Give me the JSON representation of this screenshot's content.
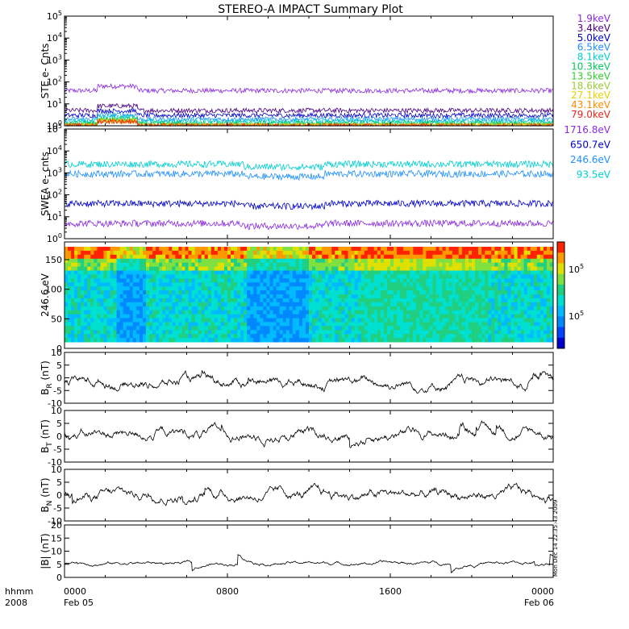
{
  "title": "STEREO-A IMPACT Summary Plot",
  "timestamp": "Mon Dec 14 22:35:43 2009",
  "colors": {
    "panel_border": "#000000",
    "trace": "#000000"
  },
  "chart_data": [
    {
      "id": "ste",
      "type": "line",
      "ylabel": "STE e- Cnts",
      "yscale": "log",
      "ylim": [
        1,
        100000
      ],
      "y_ticks": [
        {
          "base": "10",
          "exp": "0"
        },
        {
          "base": "10",
          "exp": "1"
        },
        {
          "base": "10",
          "exp": "2"
        },
        {
          "base": "10",
          "exp": "3"
        },
        {
          "base": "10",
          "exp": "4"
        },
        {
          "base": "10",
          "exp": "5"
        }
      ],
      "series": [
        {
          "name": "1.9keV",
          "color": "#8a2be2",
          "level": 40
        },
        {
          "name": "3.4keV",
          "color": "#4b0082",
          "level": 5
        },
        {
          "name": "5.0keV",
          "color": "#0000cd",
          "level": 3
        },
        {
          "name": "6.5keV",
          "color": "#1e90ff",
          "level": 2
        },
        {
          "name": "8.1keV",
          "color": "#00ced1",
          "level": 1.6
        },
        {
          "name": "10.3keV",
          "color": "#00c957",
          "level": 1.3
        },
        {
          "name": "13.5keV",
          "color": "#32cd32",
          "level": 1.1
        },
        {
          "name": "18.6keV",
          "color": "#9acd32",
          "level": 1.05
        },
        {
          "name": "27.1keV",
          "color": "#e6d000",
          "level": 1.02
        },
        {
          "name": "43.1keV",
          "color": "#ff8c00",
          "level": 1.01
        },
        {
          "name": "79.0keV",
          "color": "#e8261a",
          "level": 1.0
        }
      ]
    },
    {
      "id": "swea",
      "type": "line",
      "ylabel": "SWEA e- cnts",
      "yscale": "log",
      "ylim": [
        1,
        100000
      ],
      "y_ticks": [
        {
          "base": "10",
          "exp": "0"
        },
        {
          "base": "10",
          "exp": "1"
        },
        {
          "base": "10",
          "exp": "2"
        },
        {
          "base": "10",
          "exp": "3"
        },
        {
          "base": "10",
          "exp": "4"
        },
        {
          "base": "10",
          "exp": "5"
        }
      ],
      "series": [
        {
          "name": "1716.8eV",
          "color": "#8a2be2",
          "level": 5
        },
        {
          "name": "650.7eV",
          "color": "#0000cd",
          "level": 40
        },
        {
          "name": "246.6eV",
          "color": "#1e90ff",
          "level": 900
        },
        {
          "name": "93.5eV",
          "color": "#00ced1",
          "level": 2500
        }
      ]
    },
    {
      "id": "pad",
      "type": "heatmap",
      "ylabel": "246.6 eV",
      "ylim": [
        0,
        180
      ],
      "y_ticks": [
        "0",
        "50",
        "100",
        "150"
      ],
      "colorbar_ticks": [
        {
          "base": "10",
          "exp": "5"
        },
        {
          "base": "10",
          "exp": "5"
        }
      ]
    },
    {
      "id": "br",
      "type": "line",
      "ylabel": "B",
      "ylabel_sub": "R",
      "ylabel_unit": " (nT)",
      "ylim": [
        -10,
        10
      ],
      "y_ticks": [
        "10",
        "5",
        "0",
        "-5",
        "-10"
      ]
    },
    {
      "id": "bt",
      "type": "line",
      "ylabel": "B",
      "ylabel_sub": "T",
      "ylabel_unit": " (nT)",
      "ylim": [
        -10,
        10
      ],
      "y_ticks": [
        "10",
        "5",
        "0",
        "-5",
        "-10"
      ]
    },
    {
      "id": "bn",
      "type": "line",
      "ylabel": "B",
      "ylabel_sub": "N",
      "ylabel_unit": " (nT)",
      "ylim": [
        -10,
        10
      ],
      "y_ticks": [
        "10",
        "5",
        "0",
        "-5",
        "-10"
      ]
    },
    {
      "id": "bmag",
      "type": "line",
      "ylabel": "|B| (nT)",
      "ylim": [
        0,
        20
      ],
      "y_ticks": [
        "20",
        "15",
        "10",
        "5",
        "0"
      ]
    }
  ],
  "x_axis": {
    "corner_top": "hhmm",
    "corner_bottom": "2008",
    "ticks": [
      {
        "time": "0000",
        "date": "Feb 05"
      },
      {
        "time": "0800",
        "date": ""
      },
      {
        "time": "1600",
        "date": ""
      },
      {
        "time": "0000",
        "date": "Feb 06"
      }
    ]
  }
}
